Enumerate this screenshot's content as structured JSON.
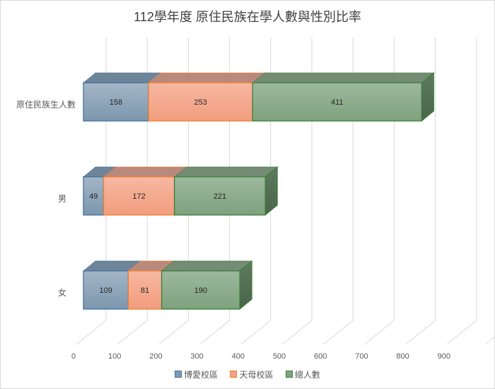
{
  "chart_data": {
    "type": "bar",
    "orientation": "horizontal",
    "stacked": true,
    "style": "3d",
    "title": "112學年度 原住民族在學人數與性別比率",
    "xlabel": "",
    "ylabel": "",
    "xlim": [
      0,
      900
    ],
    "x_ticks": [
      "0",
      "100",
      "200",
      "300",
      "400",
      "500",
      "600",
      "700",
      "800",
      "900"
    ],
    "grid": true,
    "legend_position": "bottom",
    "categories": [
      "原住民族生人數",
      "男",
      "女"
    ],
    "series": [
      {
        "name": "博愛校區",
        "values": [
          158,
          49,
          109
        ],
        "color": "#8ea7bb"
      },
      {
        "name": "天母校區",
        "values": [
          253,
          172,
          81
        ],
        "color": "#f4a98d"
      },
      {
        "name": "總人數",
        "values": [
          411,
          221,
          190
        ],
        "color": "#8fae8f"
      }
    ]
  },
  "legend": {
    "items": [
      {
        "label": "博愛校區",
        "fill": "#7f9bb4",
        "border": "#41719c"
      },
      {
        "label": "天母校區",
        "fill": "#f4a58a",
        "border": "#ed7d31"
      },
      {
        "label": "總人數",
        "fill": "#7fa57f",
        "border": "#3a7d3a"
      }
    ]
  }
}
